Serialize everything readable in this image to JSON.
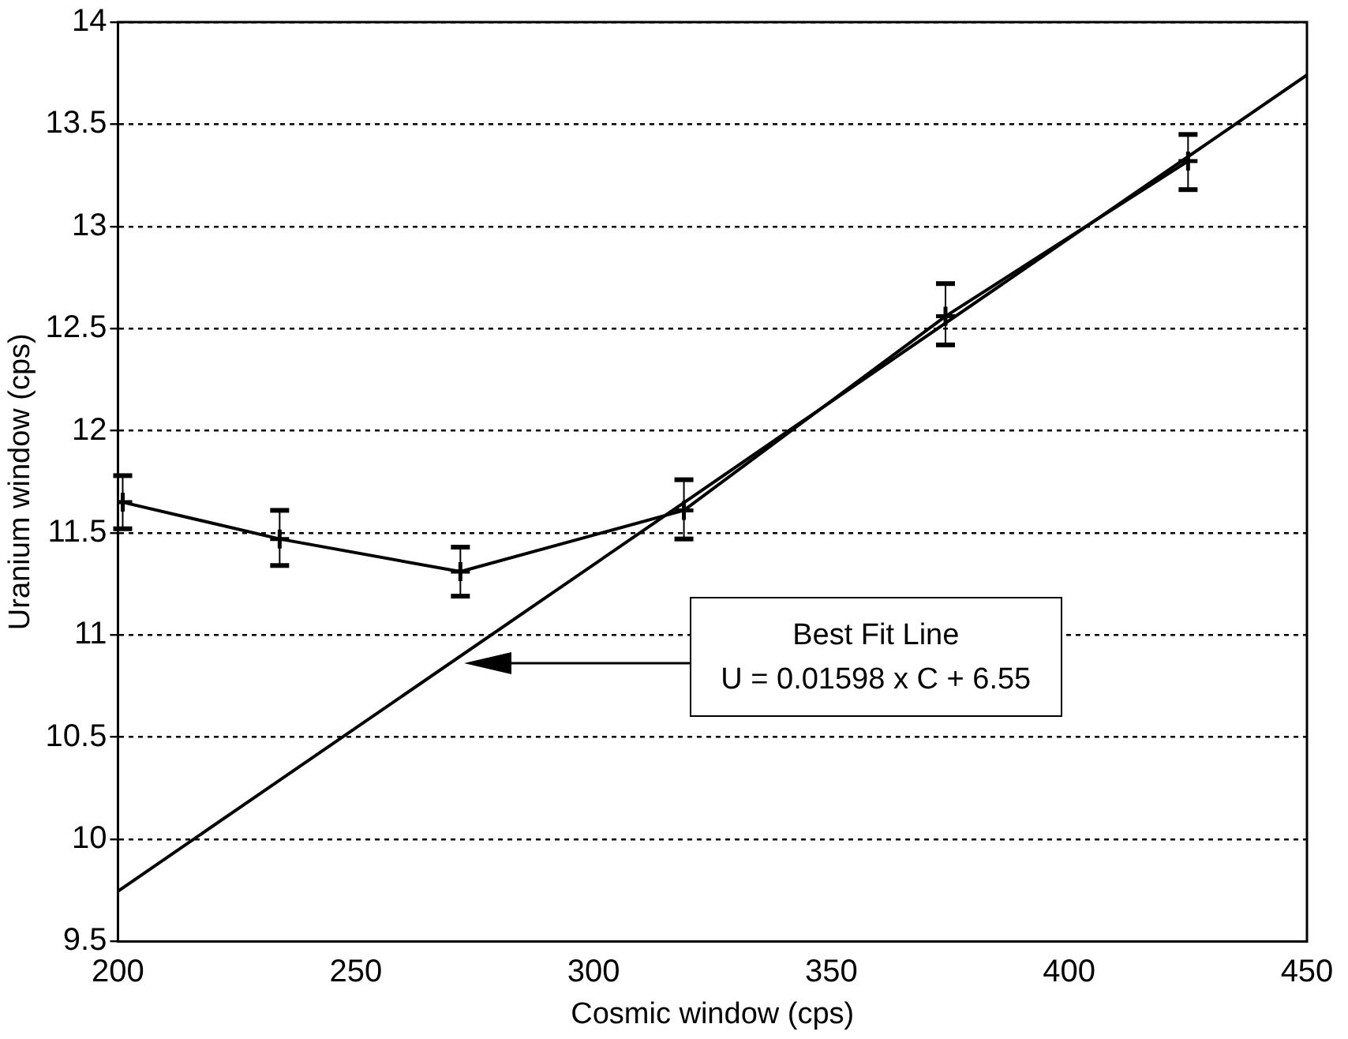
{
  "chart_data": {
    "type": "line",
    "xlabel": "Cosmic window (cps)",
    "ylabel": "Uranium window (cps)",
    "xlim": [
      200,
      450
    ],
    "xticks": [
      200,
      250,
      300,
      350,
      400,
      450
    ],
    "ylim": [
      9.5,
      14
    ],
    "yticks": [
      9.5,
      10,
      10.5,
      11,
      11.5,
      12,
      12.5,
      13,
      13.5,
      14
    ],
    "grid": "y",
    "legend": false,
    "series": [
      {
        "color": "#000000",
        "marker": "cross",
        "x": [
          201,
          234,
          272,
          319,
          374,
          425
        ],
        "values": [
          11.65,
          11.47,
          11.31,
          11.61,
          12.56,
          13.32
        ],
        "errors": [
          [
            11.52,
            11.78
          ],
          [
            11.34,
            11.61
          ],
          [
            11.19,
            11.43
          ],
          [
            11.47,
            11.76
          ],
          [
            12.42,
            12.72
          ],
          [
            13.18,
            13.45
          ]
        ]
      },
      {
        "color": "#000000",
        "marker": "none",
        "x": [
          200,
          450
        ],
        "values": [
          9.746,
          13.741
        ]
      }
    ],
    "annotations": [
      "Best Fit Line\nU = 0.01598 x C + 6.55"
    ]
  }
}
